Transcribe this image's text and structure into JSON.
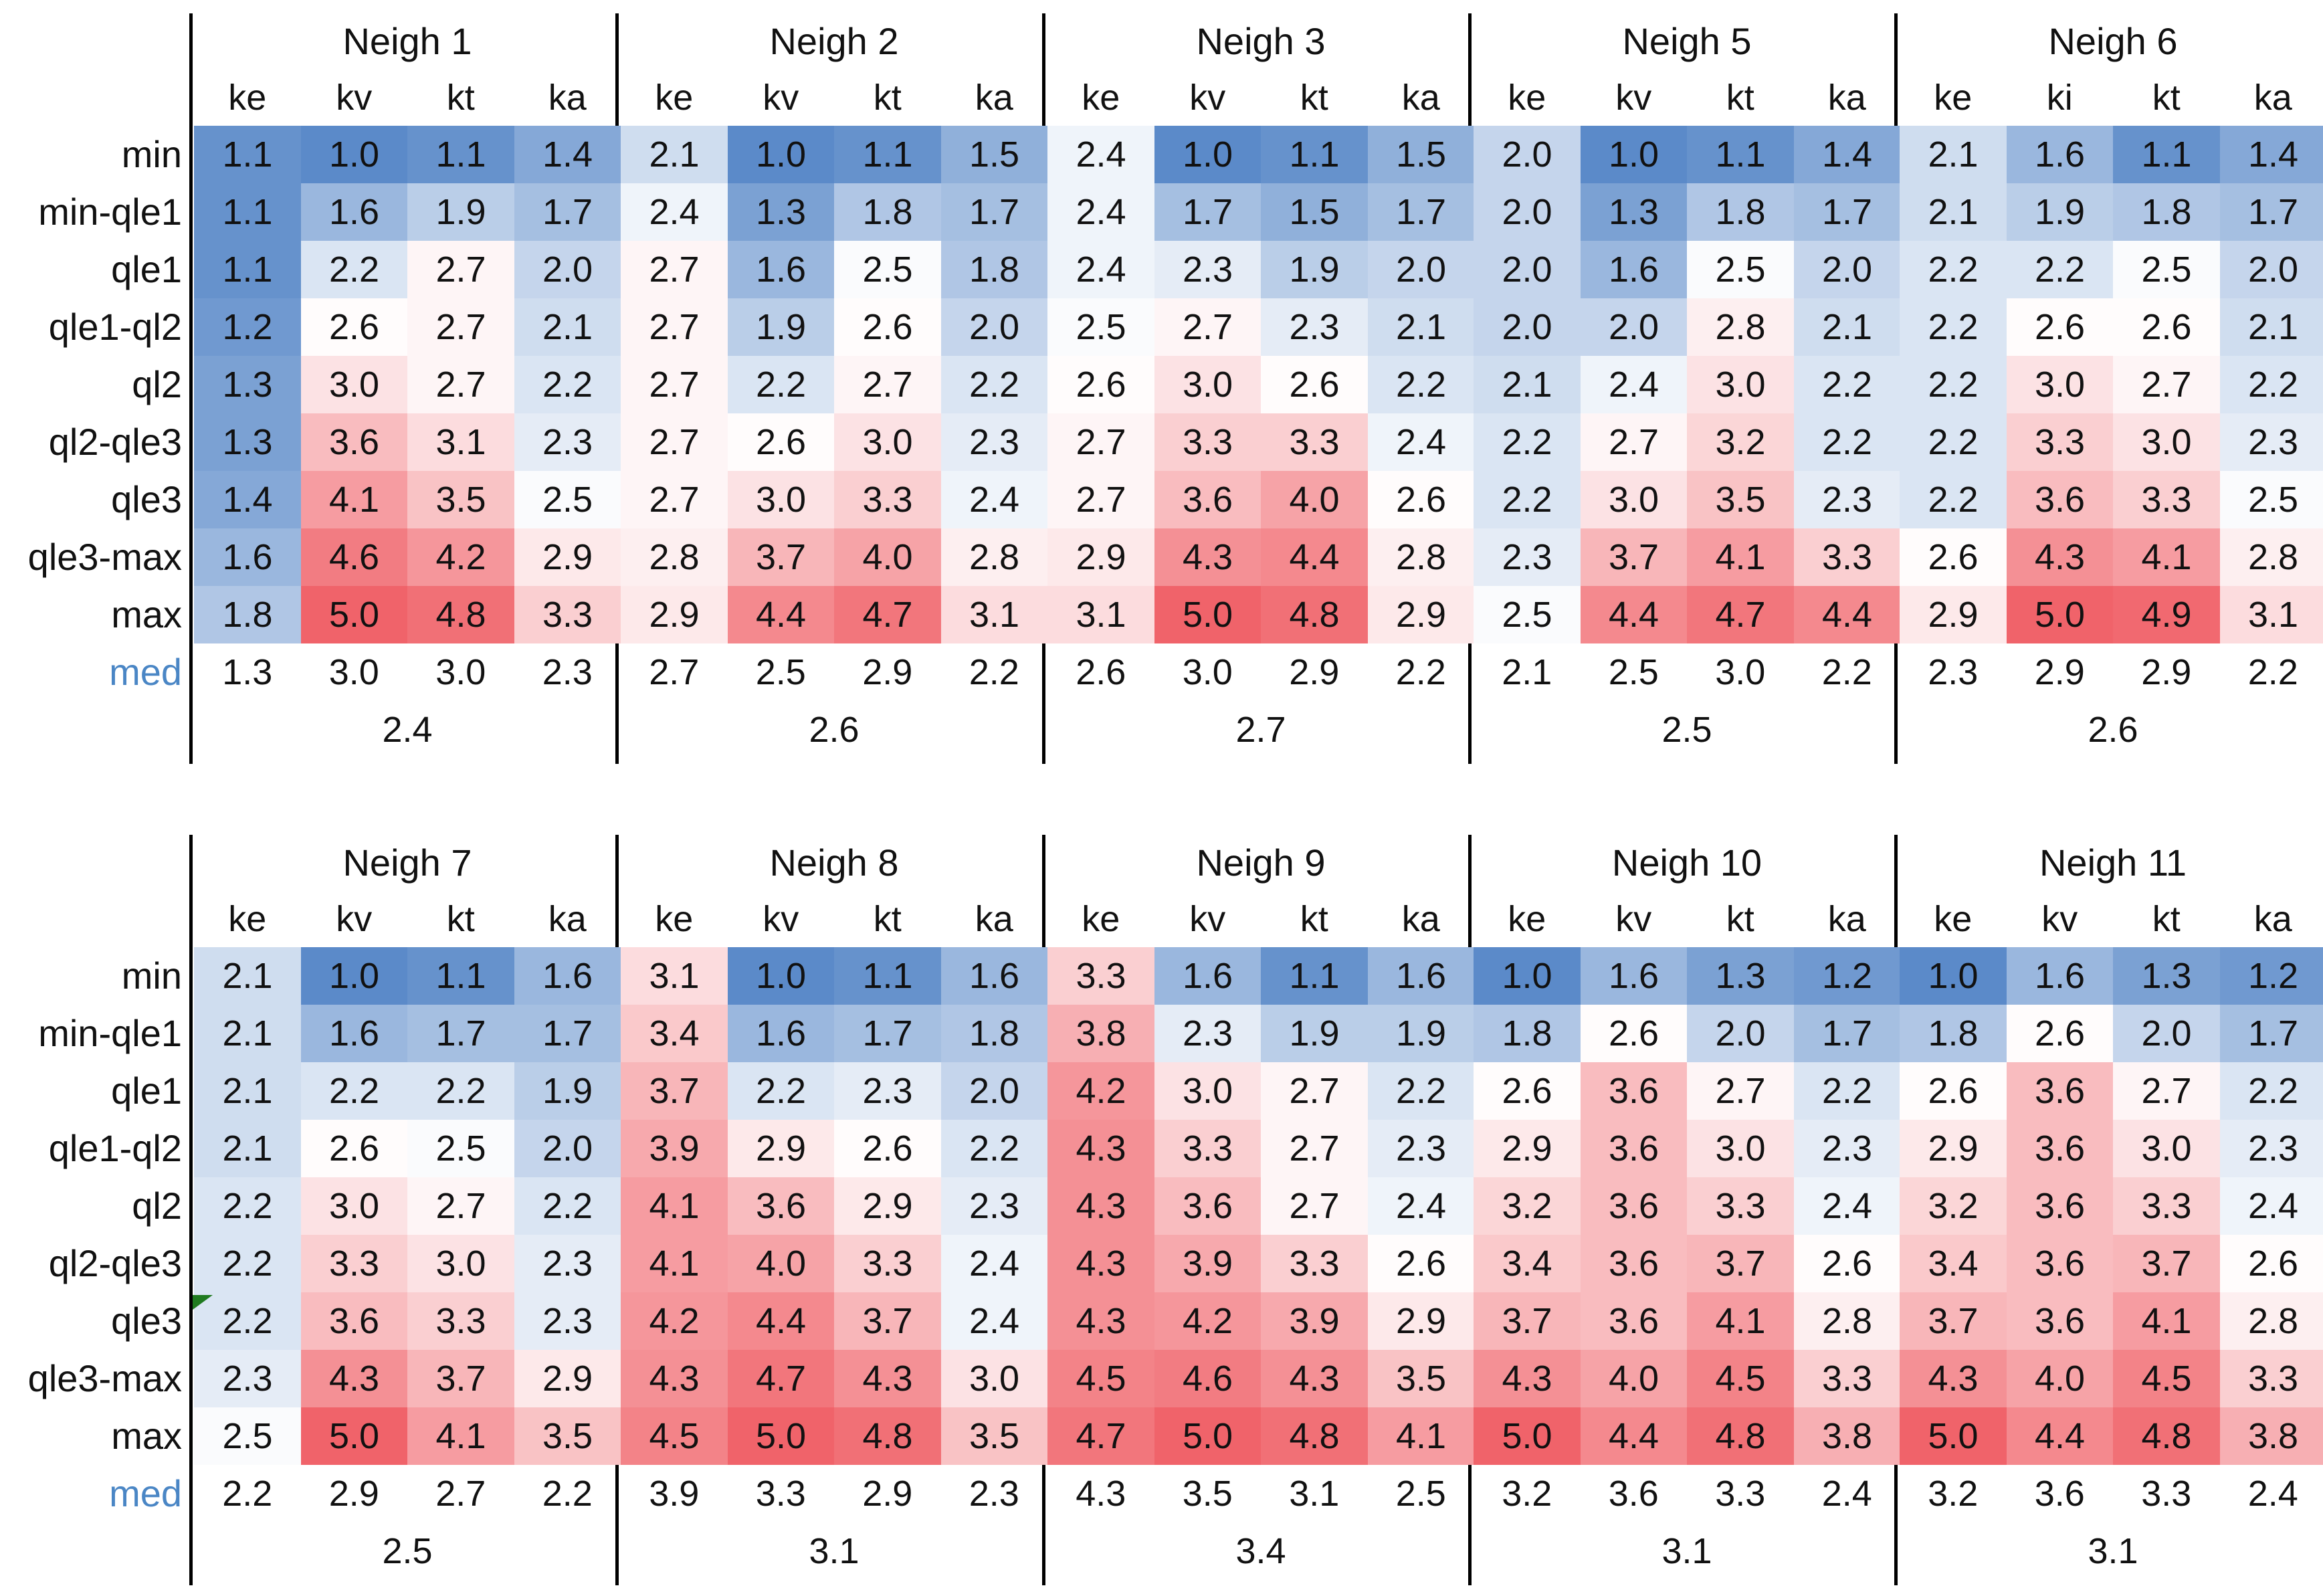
{
  "row_labels": [
    "min",
    "min-qle1",
    "qle1",
    "qle1-ql2",
    "ql2",
    "ql2-qle3",
    "qle3",
    "qle3-max",
    "max"
  ],
  "median_label": "med",
  "colors": {
    "low": "#5b8ac9",
    "mid": "#ffffff",
    "high": "#f0636a",
    "median_label": "#4a86c5",
    "comment_marker": "#1f7a1f",
    "grid_line": "#000000"
  },
  "color_scale": {
    "min": 1.0,
    "mid": 2.55,
    "max": 5.0
  },
  "blocks": [
    {
      "groups": [
        {
          "title": "Neigh 1",
          "cols": [
            "ke",
            "kv",
            "kt",
            "ka"
          ],
          "values": [
            [
              1.1,
              1.0,
              1.1,
              1.4
            ],
            [
              1.1,
              1.6,
              1.9,
              1.7
            ],
            [
              1.1,
              2.2,
              2.7,
              2.0
            ],
            [
              1.2,
              2.6,
              2.7,
              2.1
            ],
            [
              1.3,
              3.0,
              2.7,
              2.2
            ],
            [
              1.3,
              3.6,
              3.1,
              2.3
            ],
            [
              1.4,
              4.1,
              3.5,
              2.5
            ],
            [
              1.6,
              4.6,
              4.2,
              2.9
            ],
            [
              1.8,
              5.0,
              4.8,
              3.3
            ]
          ],
          "med": [
            "1.3",
            "3.0",
            "3.0",
            "2.3"
          ],
          "overall": "2.4"
        },
        {
          "title": "Neigh 2",
          "cols": [
            "ke",
            "kv",
            "kt",
            "ka"
          ],
          "values": [
            [
              2.1,
              1.0,
              1.1,
              1.5
            ],
            [
              2.4,
              1.3,
              1.8,
              1.7
            ],
            [
              2.7,
              1.6,
              2.5,
              1.8
            ],
            [
              2.7,
              1.9,
              2.6,
              2.0
            ],
            [
              2.7,
              2.2,
              2.7,
              2.2
            ],
            [
              2.7,
              2.6,
              3.0,
              2.3
            ],
            [
              2.7,
              3.0,
              3.3,
              2.4
            ],
            [
              2.8,
              3.7,
              4.0,
              2.8
            ],
            [
              2.9,
              4.4,
              4.7,
              3.1
            ]
          ],
          "med": [
            "2.7",
            "2.5",
            "2.9",
            "2.2"
          ],
          "overall": "2.6"
        },
        {
          "title": "Neigh 3",
          "cols": [
            "ke",
            "kv",
            "kt",
            "ka"
          ],
          "values": [
            [
              2.4,
              1.0,
              1.1,
              1.5
            ],
            [
              2.4,
              1.7,
              1.5,
              1.7
            ],
            [
              2.4,
              2.3,
              1.9,
              2.0
            ],
            [
              2.5,
              2.7,
              2.3,
              2.1
            ],
            [
              2.6,
              3.0,
              2.6,
              2.2
            ],
            [
              2.7,
              3.3,
              3.3,
              2.4
            ],
            [
              2.7,
              3.6,
              4.0,
              2.6
            ],
            [
              2.9,
              4.3,
              4.4,
              2.8
            ],
            [
              3.1,
              5.0,
              4.8,
              2.9
            ]
          ],
          "med": [
            "2.6",
            "3.0",
            "2.9",
            "2.2"
          ],
          "overall": "2.7"
        },
        {
          "title": "Neigh 5",
          "cols": [
            "ke",
            "kv",
            "kt",
            "ka"
          ],
          "values": [
            [
              2.0,
              1.0,
              1.1,
              1.4
            ],
            [
              2.0,
              1.3,
              1.8,
              1.7
            ],
            [
              2.0,
              1.6,
              2.5,
              2.0
            ],
            [
              2.0,
              2.0,
              2.8,
              2.1
            ],
            [
              2.1,
              2.4,
              3.0,
              2.2
            ],
            [
              2.2,
              2.7,
              3.2,
              2.2
            ],
            [
              2.2,
              3.0,
              3.5,
              2.3
            ],
            [
              2.3,
              3.7,
              4.1,
              3.3
            ],
            [
              2.5,
              4.4,
              4.7,
              4.4
            ]
          ],
          "med": [
            "2.1",
            "2.5",
            "3.0",
            "2.2"
          ],
          "overall": "2.5"
        },
        {
          "title": "Neigh 6",
          "cols": [
            "ke",
            "ki",
            "kt",
            "ka"
          ],
          "values": [
            [
              2.1,
              1.6,
              1.1,
              1.4
            ],
            [
              2.1,
              1.9,
              1.8,
              1.7
            ],
            [
              2.2,
              2.2,
              2.5,
              2.0
            ],
            [
              2.2,
              2.6,
              2.6,
              2.1
            ],
            [
              2.2,
              3.0,
              2.7,
              2.2
            ],
            [
              2.2,
              3.3,
              3.0,
              2.3
            ],
            [
              2.2,
              3.6,
              3.3,
              2.5
            ],
            [
              2.6,
              4.3,
              4.1,
              2.8
            ],
            [
              2.9,
              5.0,
              4.9,
              3.1
            ]
          ],
          "med": [
            "2.3",
            "2.9",
            "2.9",
            "2.2"
          ],
          "overall": "2.6"
        }
      ]
    },
    {
      "groups": [
        {
          "title": "Neigh 7",
          "cols": [
            "ke",
            "kv",
            "kt",
            "ka"
          ],
          "values": [
            [
              2.1,
              1.0,
              1.1,
              1.6
            ],
            [
              2.1,
              1.6,
              1.7,
              1.7
            ],
            [
              2.1,
              2.2,
              2.2,
              1.9
            ],
            [
              2.1,
              2.6,
              2.5,
              2.0
            ],
            [
              2.2,
              3.0,
              2.7,
              2.2
            ],
            [
              2.2,
              3.3,
              3.0,
              2.3
            ],
            [
              2.2,
              3.6,
              3.3,
              2.3
            ],
            [
              2.3,
              4.3,
              3.7,
              2.9
            ],
            [
              2.5,
              5.0,
              4.1,
              3.5
            ]
          ],
          "med": [
            "2.2",
            "2.9",
            "2.7",
            "2.2"
          ],
          "overall": "2.5"
        },
        {
          "title": "Neigh 8",
          "cols": [
            "ke",
            "kv",
            "kt",
            "ka"
          ],
          "values": [
            [
              3.1,
              1.0,
              1.1,
              1.6
            ],
            [
              3.4,
              1.6,
              1.7,
              1.8
            ],
            [
              3.7,
              2.2,
              2.3,
              2.0
            ],
            [
              3.9,
              2.9,
              2.6,
              2.2
            ],
            [
              4.1,
              3.6,
              2.9,
              2.3
            ],
            [
              4.1,
              4.0,
              3.3,
              2.4
            ],
            [
              4.2,
              4.4,
              3.7,
              2.4
            ],
            [
              4.3,
              4.7,
              4.3,
              3.0
            ],
            [
              4.5,
              5.0,
              4.8,
              3.5
            ]
          ],
          "med": [
            "3.9",
            "3.3",
            "2.9",
            "2.3"
          ],
          "overall": "3.1"
        },
        {
          "title": "Neigh 9",
          "cols": [
            "ke",
            "kv",
            "kt",
            "ka"
          ],
          "values": [
            [
              3.3,
              1.6,
              1.1,
              1.6
            ],
            [
              3.8,
              2.3,
              1.9,
              1.9
            ],
            [
              4.2,
              3.0,
              2.7,
              2.2
            ],
            [
              4.3,
              3.3,
              2.7,
              2.3
            ],
            [
              4.3,
              3.6,
              2.7,
              2.4
            ],
            [
              4.3,
              3.9,
              3.3,
              2.6
            ],
            [
              4.3,
              4.2,
              3.9,
              2.9
            ],
            [
              4.5,
              4.6,
              4.3,
              3.5
            ],
            [
              4.7,
              5.0,
              4.8,
              4.1
            ]
          ],
          "med": [
            "4.3",
            "3.5",
            "3.1",
            "2.5"
          ],
          "overall": "3.4"
        },
        {
          "title": "Neigh 10",
          "cols": [
            "ke",
            "kv",
            "kt",
            "ka"
          ],
          "values": [
            [
              1.0,
              1.6,
              1.3,
              1.2
            ],
            [
              1.8,
              2.6,
              2.0,
              1.7
            ],
            [
              2.6,
              3.6,
              2.7,
              2.2
            ],
            [
              2.9,
              3.6,
              3.0,
              2.3
            ],
            [
              3.2,
              3.6,
              3.3,
              2.4
            ],
            [
              3.4,
              3.6,
              3.7,
              2.6
            ],
            [
              3.7,
              3.6,
              4.1,
              2.8
            ],
            [
              4.3,
              4.0,
              4.5,
              3.3
            ],
            [
              5.0,
              4.4,
              4.8,
              3.8
            ]
          ],
          "med": [
            "3.2",
            "3.6",
            "3.3",
            "2.4"
          ],
          "overall": "3.1"
        },
        {
          "title": "Neigh 11",
          "cols": [
            "ke",
            "kv",
            "kt",
            "ka"
          ],
          "values": [
            [
              1.0,
              1.6,
              1.3,
              1.2
            ],
            [
              1.8,
              2.6,
              2.0,
              1.7
            ],
            [
              2.6,
              3.6,
              2.7,
              2.2
            ],
            [
              2.9,
              3.6,
              3.0,
              2.3
            ],
            [
              3.2,
              3.6,
              3.3,
              2.4
            ],
            [
              3.4,
              3.6,
              3.7,
              2.6
            ],
            [
              3.7,
              3.6,
              4.1,
              2.8
            ],
            [
              4.3,
              4.0,
              4.5,
              3.3
            ],
            [
              5.0,
              4.4,
              4.8,
              3.8
            ]
          ],
          "med": [
            "3.2",
            "3.6",
            "3.3",
            "2.4"
          ],
          "overall": "3.1"
        }
      ]
    }
  ]
}
